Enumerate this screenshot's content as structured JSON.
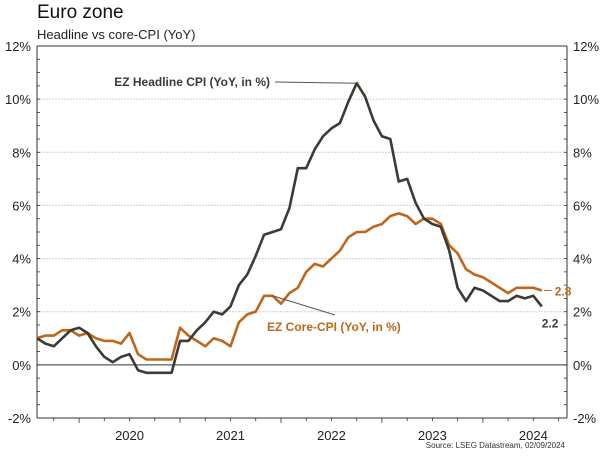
{
  "title": "Euro zone",
  "subtitle": "Headline vs core-CPI (YoY)",
  "source": "Source: LSEG Datastream, 02/09/2024",
  "colors": {
    "headline": "#3d3a33",
    "core": "#c0661a",
    "grid": "#cfcfcf",
    "axis": "#333333"
  },
  "chart_data": {
    "type": "line",
    "title": "Euro zone",
    "subtitle": "Headline vs core-CPI (YoY)",
    "xlabel": "",
    "ylabel": "",
    "ylim": [
      -2,
      12
    ],
    "yticks": [
      -2,
      0,
      2,
      4,
      6,
      8,
      10,
      12
    ],
    "ytick_labels": [
      "-2%",
      "0%",
      "2%",
      "4%",
      "6%",
      "8%",
      "10%",
      "12%"
    ],
    "xlim": [
      "2019-08",
      "2024-11"
    ],
    "xtick_labels": [
      "2020",
      "2021",
      "2022",
      "2023",
      "2024"
    ],
    "grid": true,
    "dual_y_axis": true,
    "x": [
      "2019-08",
      "2019-09",
      "2019-10",
      "2019-11",
      "2019-12",
      "2020-01",
      "2020-02",
      "2020-03",
      "2020-04",
      "2020-05",
      "2020-06",
      "2020-07",
      "2020-08",
      "2020-09",
      "2020-10",
      "2020-11",
      "2020-12",
      "2021-01",
      "2021-02",
      "2021-03",
      "2021-04",
      "2021-05",
      "2021-06",
      "2021-07",
      "2021-08",
      "2021-09",
      "2021-10",
      "2021-11",
      "2021-12",
      "2022-01",
      "2022-02",
      "2022-03",
      "2022-04",
      "2022-05",
      "2022-06",
      "2022-07",
      "2022-08",
      "2022-09",
      "2022-10",
      "2022-11",
      "2022-12",
      "2023-01",
      "2023-02",
      "2023-03",
      "2023-04",
      "2023-05",
      "2023-06",
      "2023-07",
      "2023-08",
      "2023-09",
      "2023-10",
      "2023-11",
      "2023-12",
      "2024-01",
      "2024-02",
      "2024-03",
      "2024-04",
      "2024-05",
      "2024-06",
      "2024-07",
      "2024-08"
    ],
    "series": [
      {
        "name": "EZ Headline CPI (YoY, in %)",
        "values": [
          1.0,
          0.8,
          0.7,
          1.0,
          1.3,
          1.4,
          1.2,
          0.7,
          0.3,
          0.1,
          0.3,
          0.4,
          -0.2,
          -0.3,
          -0.3,
          -0.3,
          -0.3,
          0.9,
          0.9,
          1.3,
          1.6,
          2.0,
          1.9,
          2.2,
          3.0,
          3.4,
          4.1,
          4.9,
          5.0,
          5.1,
          5.9,
          7.4,
          7.4,
          8.1,
          8.6,
          8.9,
          9.1,
          9.9,
          10.6,
          10.1,
          9.2,
          8.6,
          8.5,
          6.9,
          7.0,
          6.1,
          5.5,
          5.3,
          5.2,
          4.3,
          2.9,
          2.4,
          2.9,
          2.8,
          2.6,
          2.4,
          2.4,
          2.6,
          2.5,
          2.6,
          2.2
        ]
      },
      {
        "name": "EZ Core-CPI (YoY, in %)",
        "values": [
          1.0,
          1.1,
          1.1,
          1.3,
          1.3,
          1.1,
          1.2,
          1.0,
          0.9,
          0.9,
          0.8,
          1.2,
          0.4,
          0.2,
          0.2,
          0.2,
          0.2,
          1.4,
          1.1,
          0.9,
          0.7,
          1.0,
          0.9,
          0.7,
          1.6,
          1.9,
          2.0,
          2.6,
          2.6,
          2.3,
          2.7,
          2.9,
          3.5,
          3.8,
          3.7,
          4.0,
          4.3,
          4.8,
          5.0,
          5.0,
          5.2,
          5.3,
          5.6,
          5.7,
          5.6,
          5.3,
          5.5,
          5.5,
          5.3,
          4.5,
          4.2,
          3.6,
          3.4,
          3.3,
          3.1,
          2.9,
          2.7,
          2.9,
          2.9,
          2.9,
          2.8
        ]
      }
    ],
    "annotations": [
      {
        "text": "EZ Headline CPI (YoY, in %)",
        "series": "EZ Headline CPI (YoY, in %)",
        "points_to": "2022-10"
      },
      {
        "text": "EZ Core-CPI (YoY, in %)",
        "series": "EZ Core-CPI (YoY, in %)",
        "points_to": "2021-12"
      },
      {
        "text": "2.8",
        "series": "EZ Core-CPI (YoY, in %)",
        "points_to": "2024-08"
      },
      {
        "text": "2.2",
        "series": "EZ Headline CPI (YoY, in %)",
        "points_to": "2024-08"
      }
    ]
  }
}
